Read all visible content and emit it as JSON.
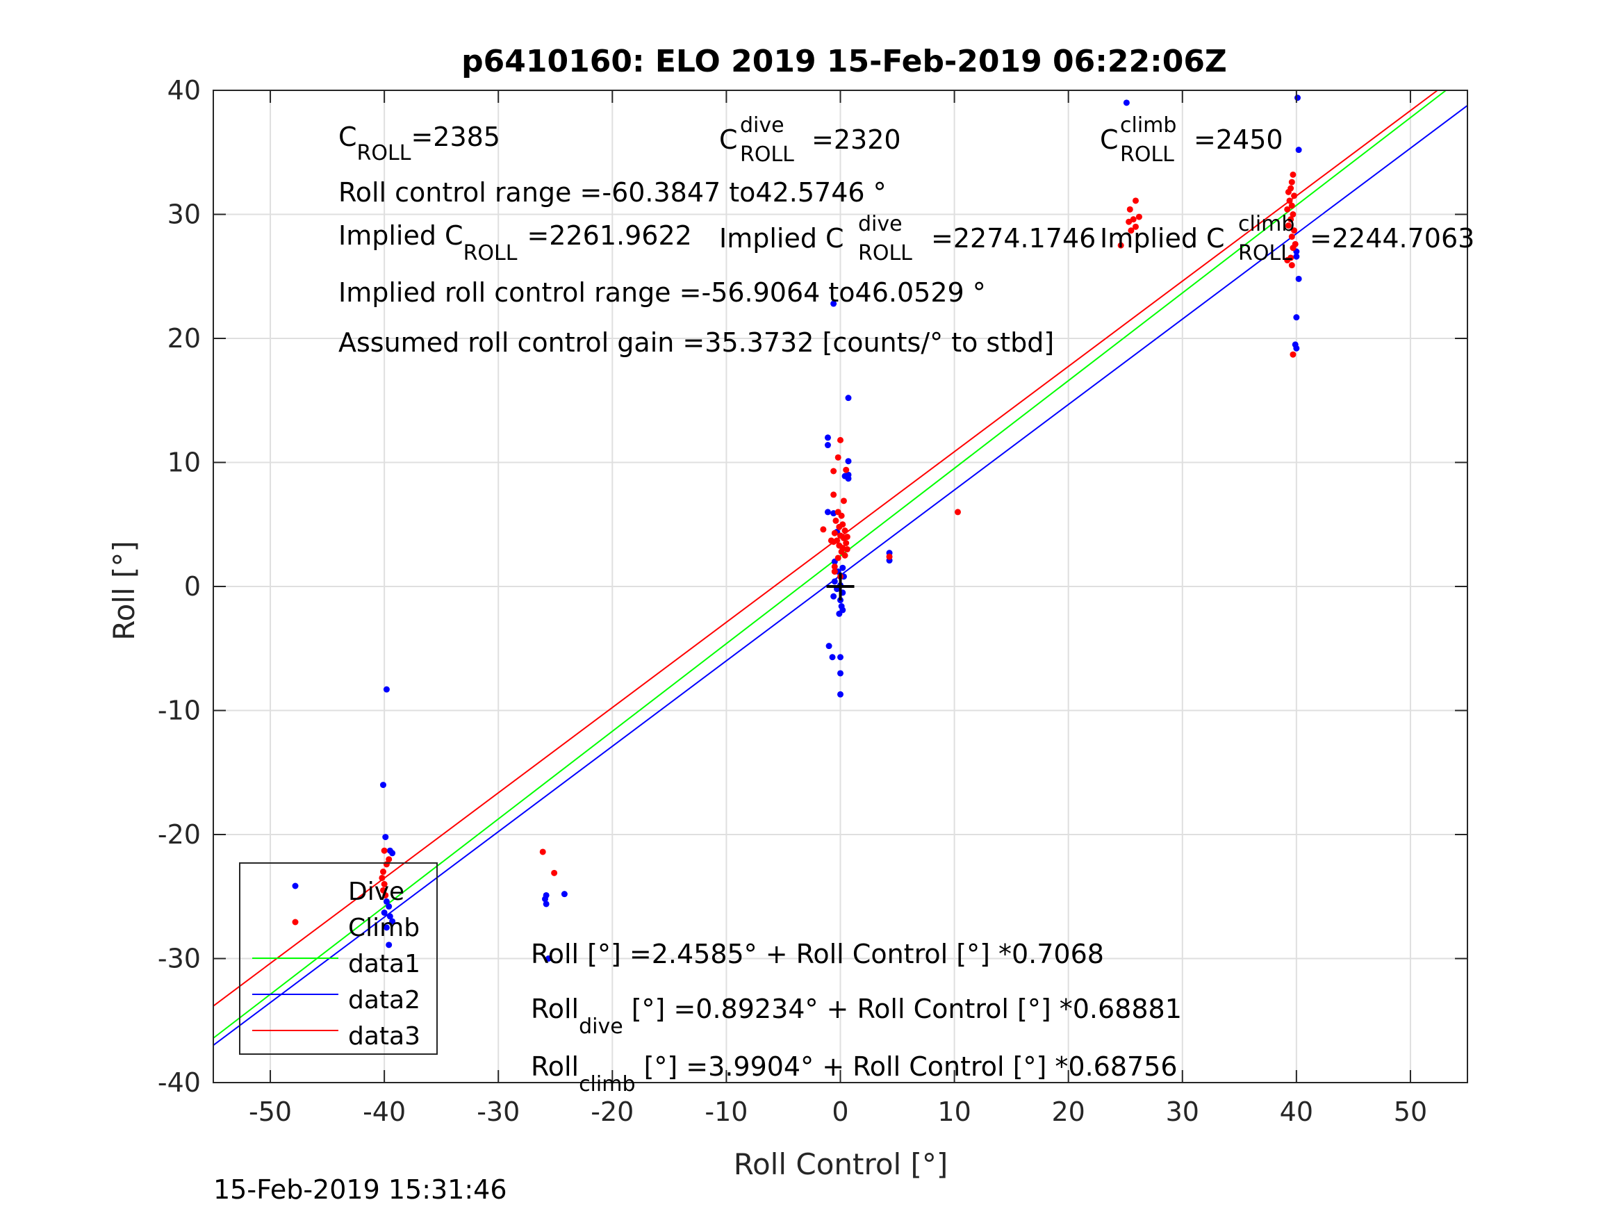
{
  "chart_data": {
    "type": "scatter",
    "title": "p6410160: ELO 2019 15-Feb-2019 06:22:06Z",
    "xlabel": "Roll Control [°]",
    "ylabel": "Roll [°]",
    "xlim": [
      -55,
      55
    ],
    "ylim": [
      -40,
      40
    ],
    "xticks": [
      -50,
      -40,
      -30,
      -20,
      -10,
      0,
      10,
      20,
      30,
      40,
      50
    ],
    "yticks": [
      -40,
      -30,
      -20,
      -10,
      0,
      10,
      20,
      30,
      40
    ],
    "grid": true,
    "legend_position": "bottom-left",
    "legend": [
      "Dive",
      "Climb",
      "data1",
      "data2",
      "data3"
    ],
    "colors": {
      "dive": "#0000ff",
      "climb": "#ff0000",
      "data1": "#00ff00",
      "data2": "#0000ff",
      "data3": "#ff0000",
      "origin_marker": "#000000"
    },
    "series": [
      {
        "name": "Dive",
        "kind": "points",
        "points": [
          [
            0.7,
            15.2
          ],
          [
            -1.1,
            12.0
          ],
          [
            -1.1,
            11.4
          ],
          [
            0.7,
            10.1
          ],
          [
            0.4,
            8.9
          ],
          [
            0.7,
            9.0
          ],
          [
            0.7,
            8.7
          ],
          [
            -1.1,
            6.0
          ],
          [
            -0.6,
            5.9
          ],
          [
            -0.3,
            4.4
          ],
          [
            -0.5,
            2.0
          ],
          [
            0.2,
            1.5
          ],
          [
            -0.2,
            1.2
          ],
          [
            0.3,
            0.8
          ],
          [
            -0.5,
            0.4
          ],
          [
            0.0,
            0.1
          ],
          [
            -0.3,
            -0.2
          ],
          [
            0.2,
            -0.5
          ],
          [
            -0.6,
            -0.8
          ],
          [
            0.0,
            -1.1
          ],
          [
            0.1,
            -1.6
          ],
          [
            -0.1,
            -2.2
          ],
          [
            0.2,
            -1.9
          ],
          [
            -1.0,
            -4.8
          ],
          [
            -0.7,
            -5.7
          ],
          [
            0.0,
            -5.7
          ],
          [
            0.0,
            -7.0
          ],
          [
            0.0,
            -8.7
          ],
          [
            4.3,
            2.7
          ],
          [
            4.3,
            2.1
          ],
          [
            -39.8,
            -8.3
          ],
          [
            -40.1,
            -16.0
          ],
          [
            -39.9,
            -20.2
          ],
          [
            -39.5,
            -21.3
          ],
          [
            -39.3,
            -21.5
          ],
          [
            -39.8,
            -25.4
          ],
          [
            -39.6,
            -25.8
          ],
          [
            -40.0,
            -26.3
          ],
          [
            -39.5,
            -26.6
          ],
          [
            -39.3,
            -27.0
          ],
          [
            -39.8,
            -27.5
          ],
          [
            -39.6,
            -28.9
          ],
          [
            -25.8,
            -24.9
          ],
          [
            -25.9,
            -25.2
          ],
          [
            -25.8,
            -25.6
          ],
          [
            -24.2,
            -24.8
          ],
          [
            -25.6,
            -30.0
          ],
          [
            25.1,
            39.0
          ],
          [
            40.1,
            39.4
          ],
          [
            40.2,
            35.2
          ],
          [
            40.0,
            27.0
          ],
          [
            40.0,
            26.6
          ],
          [
            40.2,
            24.8
          ],
          [
            40.0,
            21.7
          ],
          [
            39.9,
            19.5
          ],
          [
            40.0,
            19.2
          ],
          [
            -0.6,
            22.8
          ]
        ]
      },
      {
        "name": "Climb",
        "kind": "points",
        "points": [
          [
            0.0,
            11.8
          ],
          [
            -0.2,
            10.4
          ],
          [
            -0.6,
            9.3
          ],
          [
            0.5,
            9.4
          ],
          [
            -0.6,
            7.4
          ],
          [
            0.3,
            6.9
          ],
          [
            -0.2,
            6.0
          ],
          [
            0.1,
            5.7
          ],
          [
            -0.4,
            5.3
          ],
          [
            0.2,
            5.0
          ],
          [
            -0.1,
            4.8
          ],
          [
            0.4,
            4.5
          ],
          [
            -0.5,
            4.3
          ],
          [
            0.0,
            4.1
          ],
          [
            0.3,
            3.9
          ],
          [
            -0.3,
            3.7
          ],
          [
            0.5,
            3.5
          ],
          [
            -0.1,
            3.3
          ],
          [
            0.2,
            3.1
          ],
          [
            -0.6,
            3.6
          ],
          [
            0.1,
            2.8
          ],
          [
            0.4,
            2.5
          ],
          [
            -0.2,
            2.3
          ],
          [
            0.6,
            4.0
          ],
          [
            0.6,
            3.0
          ],
          [
            -1.5,
            4.6
          ],
          [
            -0.8,
            3.7
          ],
          [
            -0.5,
            1.2
          ],
          [
            0.0,
            0.8
          ],
          [
            -0.5,
            1.6
          ],
          [
            4.3,
            2.4
          ],
          [
            10.3,
            6.0
          ],
          [
            -40.0,
            -21.3
          ],
          [
            -39.6,
            -22.0
          ],
          [
            -39.8,
            -22.4
          ],
          [
            -40.1,
            -23.0
          ],
          [
            -40.2,
            -23.5
          ],
          [
            -40.0,
            -24.0
          ],
          [
            -40.1,
            -24.5
          ],
          [
            -39.9,
            -24.9
          ],
          [
            -26.1,
            -21.4
          ],
          [
            -25.1,
            -23.1
          ],
          [
            25.9,
            31.1
          ],
          [
            25.4,
            30.4
          ],
          [
            25.7,
            29.6
          ],
          [
            26.2,
            29.8
          ],
          [
            25.3,
            29.4
          ],
          [
            25.9,
            29.0
          ],
          [
            25.5,
            28.7
          ],
          [
            24.6,
            27.5
          ],
          [
            39.7,
            33.2
          ],
          [
            39.6,
            32.6
          ],
          [
            39.5,
            32.1
          ],
          [
            39.3,
            31.8
          ],
          [
            39.8,
            31.5
          ],
          [
            39.4,
            31.1
          ],
          [
            39.6,
            30.7
          ],
          [
            39.2,
            30.4
          ],
          [
            39.7,
            30.0
          ],
          [
            39.5,
            29.6
          ],
          [
            39.3,
            29.1
          ],
          [
            39.8,
            28.7
          ],
          [
            39.6,
            28.2
          ],
          [
            39.9,
            27.6
          ],
          [
            39.7,
            27.3
          ],
          [
            39.5,
            26.5
          ],
          [
            39.2,
            26.3
          ],
          [
            39.6,
            25.9
          ],
          [
            39.7,
            18.7
          ]
        ]
      },
      {
        "name": "data1",
        "kind": "line",
        "intercept": 2.4585,
        "slope": 0.7068
      },
      {
        "name": "data2",
        "kind": "line",
        "intercept": 0.89234,
        "slope": 0.68881
      },
      {
        "name": "data3",
        "kind": "line",
        "intercept": 3.9904,
        "slope": 0.68756
      }
    ],
    "origin_marker": [
      0,
      0
    ],
    "annotations": {
      "c_roll": {
        "base": "C",
        "sub": "ROLL",
        "sup": "",
        "value": "=2385"
      },
      "c_roll_dive": {
        "base": "C",
        "sub": "ROLL",
        "sup": "dive",
        "value": "=2320"
      },
      "c_roll_climb": {
        "base": "C",
        "sub": "ROLL",
        "sup": "climb",
        "value": "=2450"
      },
      "roll_control_range": "Roll control range =-60.3847 to42.5746 °",
      "implied_c_roll": {
        "prefix": "Implied C",
        "sub": "ROLL",
        "sup": "",
        "value": "=2261.9622"
      },
      "implied_c_roll_dive": {
        "prefix": "Implied C",
        "sub": "ROLL",
        "sup": "dive",
        "value": "=2274.1746"
      },
      "implied_c_roll_climb": {
        "prefix": "Implied C",
        "sub": "ROLL",
        "sup": "climb",
        "value": "=2244.7063"
      },
      "implied_range": "Implied roll control range =-56.9064 to46.0529 °",
      "assumed_gain": "Assumed roll control gain =35.3732 [counts/° to stbd]",
      "fit_all": {
        "base": "Roll",
        "sub": "",
        "rest": " [°] =2.4585° + Roll Control [°] *0.7068"
      },
      "fit_dive": {
        "base": "Roll",
        "sub": "dive",
        "rest": " [°] =0.89234° + Roll Control [°] *0.68881"
      },
      "fit_climb": {
        "base": "Roll",
        "sub": "climb",
        "rest": " [°] =3.9904° + Roll Control [°] *0.68756"
      }
    }
  },
  "footer": {
    "timestamp": "15-Feb-2019 15:31:46"
  }
}
